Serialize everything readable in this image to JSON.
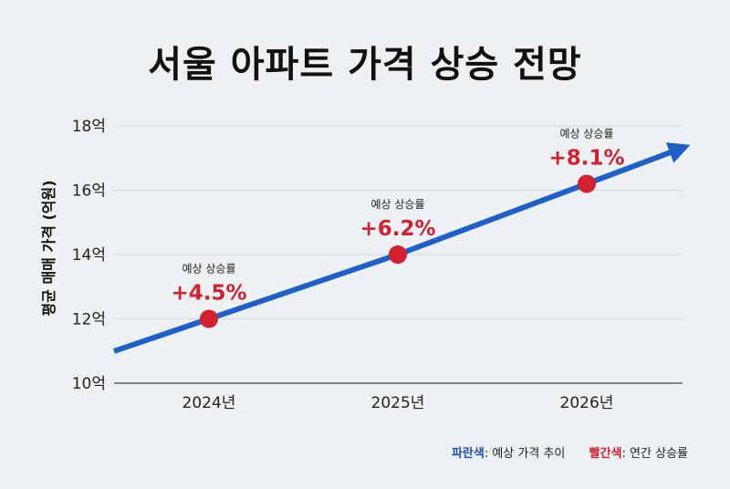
{
  "header": {
    "title": "서울 아파트 가격 상승 전망"
  },
  "chart_data": {
    "type": "line",
    "title": "서울 아파트 가격 상승 전망",
    "ylabel": "평균 매매 가격 (억원)",
    "xlabel": "",
    "categories": [
      "2024년",
      "2025년",
      "2026년"
    ],
    "yticks": [
      "10억",
      "12억",
      "14억",
      "16억",
      "18억"
    ],
    "ylim": [
      10,
      18
    ],
    "grid": true,
    "series": [
      {
        "values": [
          12,
          14,
          16.2
        ],
        "color": "#1f5fc9"
      }
    ],
    "annotations": [
      {
        "label": "예상 상승률",
        "value": "+4.5%",
        "color": "#d3202f"
      },
      {
        "label": "예상 상승률",
        "value": "+6.2%",
        "color": "#d3202f"
      },
      {
        "label": "예상 상승률",
        "value": "+8.1%",
        "color": "#d3202f"
      }
    ],
    "trend_arrow": true
  },
  "legend": {
    "blue_key": "파란색",
    "blue_desc": ": 예상 가격 추이",
    "red_key": "빨간색",
    "red_desc": ": 연간 상승률"
  }
}
